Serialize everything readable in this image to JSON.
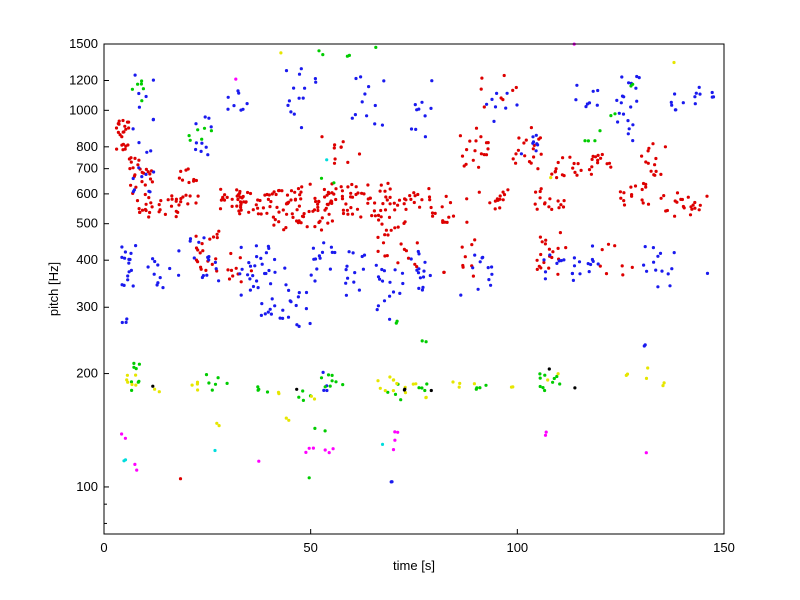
{
  "chart_data": {
    "type": "scatter",
    "title": "",
    "xlabel": "time [s]",
    "ylabel": "pitch [Hz]",
    "xlim": [
      0,
      150
    ],
    "ylim": [
      75,
      1500
    ],
    "yscale": "log",
    "grid": false,
    "legend": "none",
    "x_ticks": [
      0,
      50,
      100,
      150
    ],
    "y_ticks": [
      100,
      200,
      300,
      400,
      500,
      600,
      700,
      800,
      1000,
      1200,
      1500
    ],
    "series": [
      {
        "color": "#dd0000",
        "clusters": [
          [
            3,
            6,
            780,
            940,
            22
          ],
          [
            6,
            12,
            600,
            760,
            24
          ],
          [
            8,
            12,
            520,
            600,
            14
          ],
          [
            13,
            18,
            520,
            600,
            14
          ],
          [
            18,
            23,
            560,
            700,
            18
          ],
          [
            22,
            28,
            360,
            480,
            20
          ],
          [
            28,
            34,
            540,
            620,
            20
          ],
          [
            32,
            40,
            520,
            620,
            26
          ],
          [
            40,
            48,
            480,
            620,
            34
          ],
          [
            46,
            58,
            480,
            640,
            40
          ],
          [
            54,
            62,
            520,
            640,
            28
          ],
          [
            62,
            70,
            520,
            640,
            26
          ],
          [
            66,
            76,
            380,
            520,
            24
          ],
          [
            70,
            80,
            540,
            620,
            20
          ],
          [
            78,
            88,
            500,
            600,
            14
          ],
          [
            86,
            94,
            680,
            900,
            18
          ],
          [
            90,
            98,
            540,
            620,
            14
          ],
          [
            98,
            106,
            700,
            900,
            18
          ],
          [
            104,
            112,
            360,
            480,
            20
          ],
          [
            104,
            112,
            540,
            620,
            16
          ],
          [
            108,
            118,
            660,
            760,
            18
          ],
          [
            118,
            124,
            700,
            780,
            12
          ],
          [
            124,
            132,
            560,
            640,
            16
          ],
          [
            130,
            136,
            660,
            820,
            14
          ],
          [
            134,
            142,
            520,
            620,
            14
          ],
          [
            142,
            146,
            540,
            600,
            8
          ],
          [
            90,
            100,
            1000,
            1250,
            8
          ],
          [
            52,
            62,
            720,
            860,
            10
          ],
          [
            30,
            36,
            340,
            440,
            10
          ],
          [
            82,
            90,
            360,
            460,
            10
          ],
          [
            120,
            128,
            360,
            460,
            8
          ],
          [
            18,
            19,
            102,
            106,
            1
          ]
        ]
      },
      {
        "color": "#1a1aee",
        "clusters": [
          [
            4,
            8,
            340,
            440,
            16
          ],
          [
            7,
            12,
            600,
            1300,
            20
          ],
          [
            10,
            16,
            320,
            420,
            10
          ],
          [
            18,
            28,
            340,
            460,
            16
          ],
          [
            22,
            26,
            760,
            1000,
            10
          ],
          [
            30,
            36,
            1000,
            1200,
            8
          ],
          [
            32,
            40,
            320,
            440,
            22
          ],
          [
            38,
            46,
            280,
            420,
            22
          ],
          [
            44,
            52,
            880,
            1300,
            14
          ],
          [
            46,
            50,
            260,
            340,
            8
          ],
          [
            50,
            56,
            340,
            460,
            14
          ],
          [
            58,
            66,
            320,
            440,
            14
          ],
          [
            60,
            68,
            880,
            1250,
            12
          ],
          [
            66,
            72,
            270,
            380,
            14
          ],
          [
            72,
            80,
            320,
            440,
            16
          ],
          [
            74,
            80,
            800,
            1200,
            10
          ],
          [
            86,
            94,
            320,
            420,
            12
          ],
          [
            92,
            100,
            920,
            1150,
            8
          ],
          [
            100,
            106,
            760,
            900,
            8
          ],
          [
            106,
            114,
            350,
            420,
            12
          ],
          [
            112,
            120,
            360,
            440,
            10
          ],
          [
            114,
            120,
            1000,
            1200,
            8
          ],
          [
            122,
            128,
            820,
            1100,
            10
          ],
          [
            124,
            130,
            1050,
            1250,
            10
          ],
          [
            130,
            138,
            340,
            440,
            14
          ],
          [
            134,
            144,
            1000,
            1200,
            10
          ],
          [
            144,
            148,
            1080,
            1120,
            4
          ],
          [
            53,
            54,
            180,
            210,
            4
          ],
          [
            69,
            70,
            100,
            105,
            2
          ],
          [
            3,
            6,
            270,
            280,
            3
          ],
          [
            130,
            131,
            235,
            240,
            2
          ],
          [
            146,
            147,
            360,
            370,
            1
          ]
        ]
      },
      {
        "color": "#00cc00",
        "clusters": [
          [
            6,
            10,
            1050,
            1200,
            6
          ],
          [
            6,
            10,
            180,
            215,
            8
          ],
          [
            20,
            26,
            800,
            900,
            6
          ],
          [
            24,
            30,
            180,
            200,
            6
          ],
          [
            36,
            40,
            175,
            185,
            4
          ],
          [
            46,
            50,
            160,
            180,
            4
          ],
          [
            52,
            58,
            180,
            200,
            8
          ],
          [
            52,
            54,
            1400,
            1450,
            2
          ],
          [
            58,
            60,
            1350,
            1400,
            2
          ],
          [
            64,
            66,
            1450,
            1480,
            1
          ],
          [
            68,
            72,
            170,
            190,
            4
          ],
          [
            68,
            72,
            270,
            280,
            2
          ],
          [
            76,
            80,
            180,
            190,
            4
          ],
          [
            76,
            78,
            240,
            250,
            2
          ],
          [
            90,
            94,
            180,
            190,
            4
          ],
          [
            104,
            108,
            180,
            200,
            6
          ],
          [
            108,
            112,
            180,
            200,
            4
          ],
          [
            116,
            120,
            820,
            900,
            4
          ],
          [
            122,
            124,
            960,
            980,
            2
          ],
          [
            126,
            128,
            1150,
            1180,
            2
          ],
          [
            50,
            54,
            140,
            150,
            2
          ],
          [
            48,
            50,
            104,
            106,
            1
          ],
          [
            52,
            56,
            620,
            660,
            2
          ]
        ]
      },
      {
        "color": "#e6e600",
        "clusters": [
          [
            4,
            8,
            185,
            200,
            6
          ],
          [
            12,
            14,
            178,
            182,
            2
          ],
          [
            20,
            24,
            180,
            190,
            4
          ],
          [
            26,
            28,
            145,
            150,
            2
          ],
          [
            40,
            44,
            175,
            185,
            2
          ],
          [
            44,
            46,
            150,
            155,
            2
          ],
          [
            66,
            72,
            180,
            200,
            8
          ],
          [
            72,
            78,
            170,
            190,
            6
          ],
          [
            84,
            90,
            180,
            190,
            4
          ],
          [
            96,
            100,
            180,
            185,
            2
          ],
          [
            106,
            110,
            190,
            200,
            2
          ],
          [
            126,
            132,
            190,
            210,
            4
          ],
          [
            134,
            138,
            185,
            190,
            2
          ],
          [
            42,
            43,
            1420,
            1440,
            1
          ],
          [
            50,
            52,
            170,
            175,
            2
          ],
          [
            108,
            110,
            660,
            680,
            1
          ],
          [
            136,
            138,
            1320,
            1340,
            1
          ]
        ]
      },
      {
        "color": "#ff00ff",
        "clusters": [
          [
            4,
            6,
            130,
            140,
            2
          ],
          [
            6,
            8,
            110,
            115,
            2
          ],
          [
            36,
            38,
            115,
            118,
            1
          ],
          [
            48,
            56,
            123,
            127,
            6
          ],
          [
            70,
            72,
            125,
            140,
            4
          ],
          [
            106,
            108,
            130,
            140,
            2
          ],
          [
            112,
            114,
            1480,
            1500,
            1
          ],
          [
            30,
            32,
            1200,
            1220,
            1
          ],
          [
            130,
            132,
            123,
            127,
            1
          ]
        ]
      },
      {
        "color": "#00dddd",
        "clusters": [
          [
            4,
            6,
            115,
            120,
            2
          ],
          [
            26,
            28,
            123,
            127,
            1
          ],
          [
            66,
            68,
            125,
            130,
            1
          ],
          [
            52,
            54,
            730,
            740,
            1
          ]
        ]
      },
      {
        "color": "#000000",
        "clusters": [
          [
            10,
            12,
            183,
            187,
            1
          ],
          [
            46,
            48,
            180,
            185,
            1
          ],
          [
            72,
            74,
            180,
            185,
            2
          ],
          [
            106,
            108,
            205,
            210,
            1
          ],
          [
            112,
            114,
            180,
            185,
            1
          ],
          [
            78,
            80,
            180,
            185,
            1
          ]
        ]
      }
    ]
  }
}
